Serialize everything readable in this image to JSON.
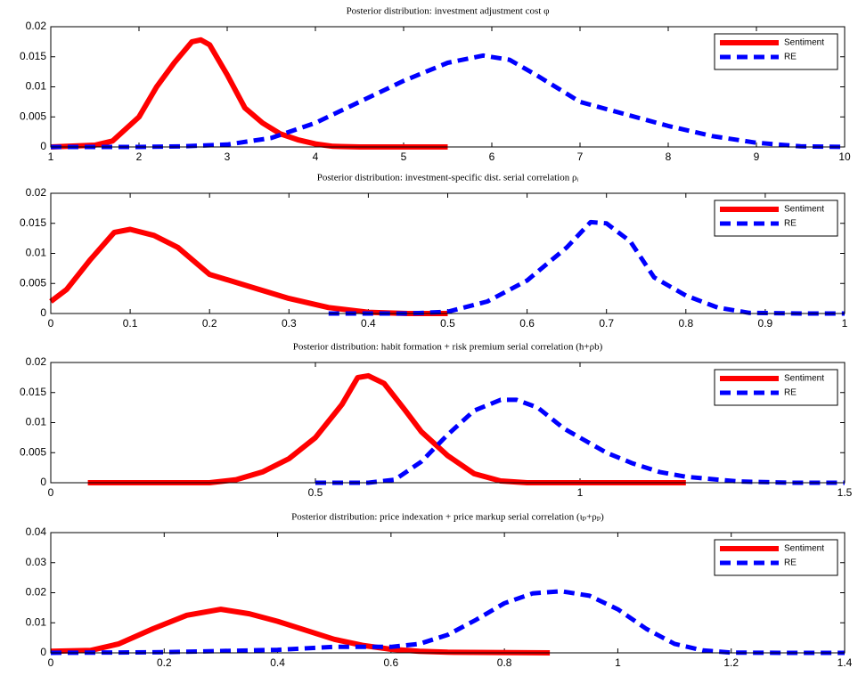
{
  "chart_data": [
    {
      "type": "line",
      "title": "Posterior distribution: investment adjustment cost φ",
      "xlim": [
        1,
        10
      ],
      "xticks": [
        1,
        2,
        3,
        4,
        5,
        6,
        7,
        8,
        9,
        10
      ],
      "ylim": [
        0,
        0.02
      ],
      "yticks": [
        0,
        0.005,
        0.01,
        0.015,
        0.02
      ],
      "legend": "northeast",
      "series": [
        {
          "name": "Sentiment",
          "color": "#ff0000",
          "style": "solid",
          "x": [
            1,
            1.5,
            1.7,
            2,
            2.2,
            2.4,
            2.6,
            2.7,
            2.8,
            3,
            3.2,
            3.4,
            3.6,
            3.8,
            4,
            4.2,
            4.5,
            5,
            5.5
          ],
          "values": [
            0,
            0.0003,
            0.001,
            0.005,
            0.01,
            0.014,
            0.0175,
            0.0178,
            0.017,
            0.012,
            0.0065,
            0.004,
            0.0022,
            0.0012,
            0.0005,
            0.0001,
            0,
            0,
            0
          ]
        },
        {
          "name": "RE",
          "color": "#0000ff",
          "style": "dashed",
          "x": [
            1,
            2,
            2.5,
            3,
            3.5,
            4,
            4.5,
            5,
            5.5,
            5.9,
            6.2,
            6.5,
            7,
            7.5,
            8,
            8.5,
            9,
            9.5,
            10
          ],
          "values": [
            0,
            0,
            0.0001,
            0.0004,
            0.0015,
            0.004,
            0.0075,
            0.011,
            0.014,
            0.0152,
            0.0145,
            0.012,
            0.0075,
            0.0055,
            0.0035,
            0.0018,
            0.0007,
            0.0001,
            0
          ]
        }
      ]
    },
    {
      "type": "line",
      "title": "Posterior distribution: investment-specific dist. serial correlation ρᵢ",
      "xlim": [
        0,
        1
      ],
      "xticks": [
        0,
        0.1,
        0.2,
        0.3,
        0.4,
        0.5,
        0.6,
        0.7,
        0.8,
        0.9,
        1
      ],
      "ylim": [
        0,
        0.02
      ],
      "yticks": [
        0,
        0.005,
        0.01,
        0.015,
        0.02
      ],
      "legend": "northeast",
      "series": [
        {
          "name": "Sentiment",
          "color": "#ff0000",
          "style": "solid",
          "x": [
            0,
            0.02,
            0.05,
            0.08,
            0.1,
            0.13,
            0.16,
            0.2,
            0.25,
            0.3,
            0.35,
            0.4,
            0.45,
            0.5
          ],
          "values": [
            0.002,
            0.004,
            0.009,
            0.0135,
            0.014,
            0.013,
            0.011,
            0.0065,
            0.0045,
            0.0025,
            0.001,
            0.0002,
            0,
            0
          ]
        },
        {
          "name": "RE",
          "color": "#0000ff",
          "style": "dashed",
          "x": [
            0.35,
            0.45,
            0.5,
            0.55,
            0.6,
            0.65,
            0.68,
            0.7,
            0.73,
            0.76,
            0.8,
            0.84,
            0.88,
            0.95,
            1
          ],
          "values": [
            0,
            0,
            0.0003,
            0.002,
            0.0055,
            0.011,
            0.0152,
            0.015,
            0.012,
            0.006,
            0.003,
            0.001,
            0.0001,
            0,
            0
          ]
        }
      ]
    },
    {
      "type": "line",
      "title": "Posterior distribution: habit formation + risk premium serial correlation (h+ρb)",
      "xlim": [
        0,
        1.5
      ],
      "xticks": [
        0,
        0.5,
        1,
        1.5
      ],
      "ylim": [
        0,
        0.02
      ],
      "yticks": [
        0,
        0.005,
        0.01,
        0.015,
        0.02
      ],
      "legend": "northeast",
      "series": [
        {
          "name": "Sentiment",
          "color": "#ff0000",
          "style": "solid",
          "x": [
            0.07,
            0.3,
            0.35,
            0.4,
            0.45,
            0.5,
            0.55,
            0.58,
            0.6,
            0.63,
            0.67,
            0.7,
            0.75,
            0.8,
            0.85,
            0.9,
            1.2
          ],
          "values": [
            0,
            0,
            0.0005,
            0.0018,
            0.004,
            0.0075,
            0.013,
            0.0175,
            0.0178,
            0.0165,
            0.012,
            0.0085,
            0.0045,
            0.0015,
            0.0003,
            0,
            0
          ]
        },
        {
          "name": "RE",
          "color": "#0000ff",
          "style": "dashed",
          "x": [
            0.5,
            0.6,
            0.65,
            0.7,
            0.75,
            0.8,
            0.85,
            0.88,
            0.92,
            0.97,
            1,
            1.05,
            1.1,
            1.15,
            1.2,
            1.3,
            1.4,
            1.5
          ],
          "values": [
            0,
            0,
            0.0005,
            0.0035,
            0.008,
            0.012,
            0.0138,
            0.0138,
            0.0125,
            0.009,
            0.0075,
            0.005,
            0.0032,
            0.0018,
            0.001,
            0.0002,
            0,
            0
          ]
        }
      ]
    },
    {
      "type": "line",
      "title": "Posterior distribution: price indexation + price markup serial correlation (ιₚ+ρₚ)",
      "xlim": [
        0,
        1.4
      ],
      "xticks": [
        0,
        0.2,
        0.4,
        0.6,
        0.8,
        1,
        1.2,
        1.4
      ],
      "ylim": [
        0,
        0.04
      ],
      "yticks": [
        0,
        0.01,
        0.02,
        0.03,
        0.04
      ],
      "legend": "northeast",
      "series": [
        {
          "name": "Sentiment",
          "color": "#ff0000",
          "style": "solid",
          "x": [
            0,
            0.07,
            0.12,
            0.18,
            0.24,
            0.3,
            0.35,
            0.4,
            0.45,
            0.5,
            0.55,
            0.6,
            0.65,
            0.7,
            0.88
          ],
          "values": [
            0.0005,
            0.0008,
            0.003,
            0.008,
            0.0125,
            0.0145,
            0.013,
            0.0105,
            0.0075,
            0.0045,
            0.0025,
            0.0012,
            0.0005,
            0.0002,
            0
          ]
        },
        {
          "name": "RE",
          "color": "#0000ff",
          "style": "dashed",
          "x": [
            0,
            0.2,
            0.4,
            0.5,
            0.6,
            0.65,
            0.7,
            0.75,
            0.8,
            0.85,
            0.9,
            0.95,
            1,
            1.05,
            1.1,
            1.15,
            1.2,
            1.3,
            1.4
          ],
          "values": [
            0,
            0.0002,
            0.001,
            0.002,
            0.002,
            0.003,
            0.006,
            0.011,
            0.0165,
            0.0198,
            0.0205,
            0.019,
            0.0145,
            0.008,
            0.003,
            0.0008,
            0.0001,
            0,
            0
          ]
        }
      ]
    }
  ]
}
